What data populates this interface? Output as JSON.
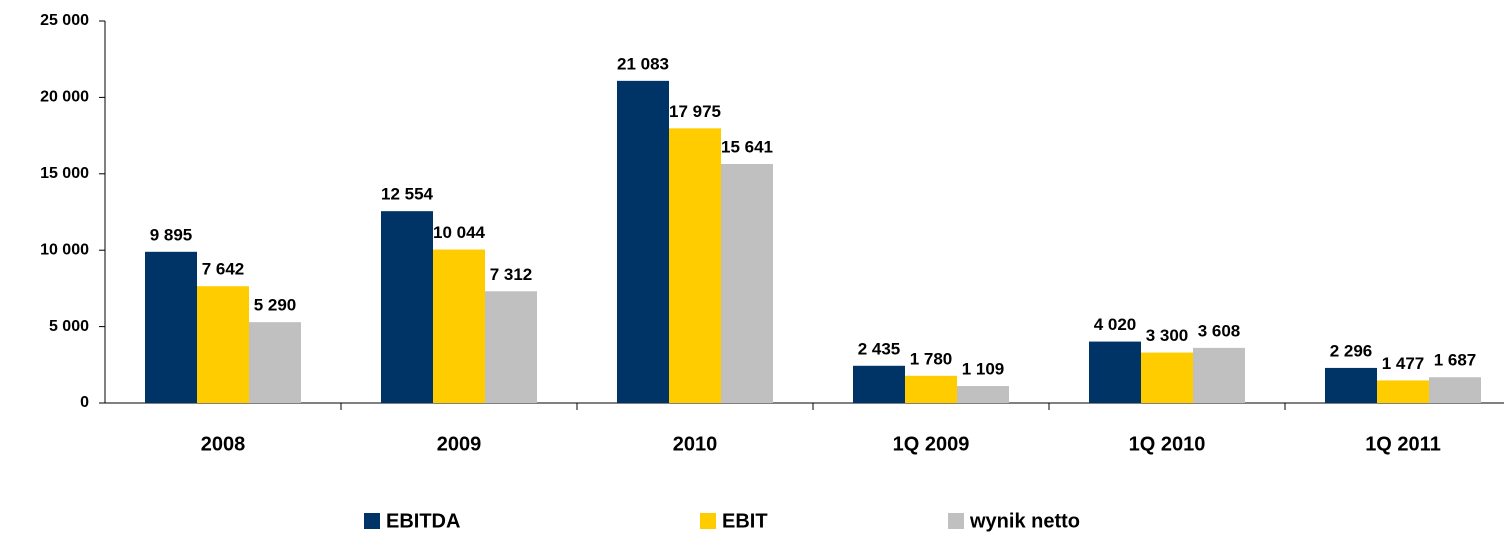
{
  "chart_data": {
    "type": "bar",
    "categories": [
      "2008",
      "2009",
      "2010",
      "1Q 2009",
      "1Q 2010",
      "1Q 2011"
    ],
    "series": [
      {
        "name": "EBITDA",
        "color": "#003366",
        "values": [
          9895,
          12554,
          21083,
          2435,
          4020,
          2296
        ],
        "value_labels": [
          "9 895",
          "12 554",
          "21 083",
          "2 435",
          "4 020",
          "2 296"
        ]
      },
      {
        "name": "EBIT",
        "color": "#ffcc00",
        "values": [
          7642,
          10044,
          17975,
          1780,
          3300,
          1477
        ],
        "value_labels": [
          "7 642",
          "10 044",
          "17 975",
          "1 780",
          "3 300",
          "1 477"
        ]
      },
      {
        "name": "wynik netto",
        "color": "#c0c0c0",
        "values": [
          5290,
          7312,
          15641,
          1109,
          3608,
          1687
        ],
        "value_labels": [
          "5 290",
          "7 312",
          "15 641",
          "1 109",
          "3 608",
          "1 687"
        ]
      }
    ],
    "ylim": [
      0,
      25000
    ],
    "yticks": [
      0,
      {
        "value": 5000,
        "label": "5 000"
      },
      {
        "value": 10000,
        "label": "10 000"
      },
      {
        "value": 15000,
        "label": "15 000"
      },
      {
        "value": 20000,
        "label": "20 000"
      },
      {
        "value": 25000,
        "label": "25 000"
      }
    ],
    "legend": "bottom"
  }
}
